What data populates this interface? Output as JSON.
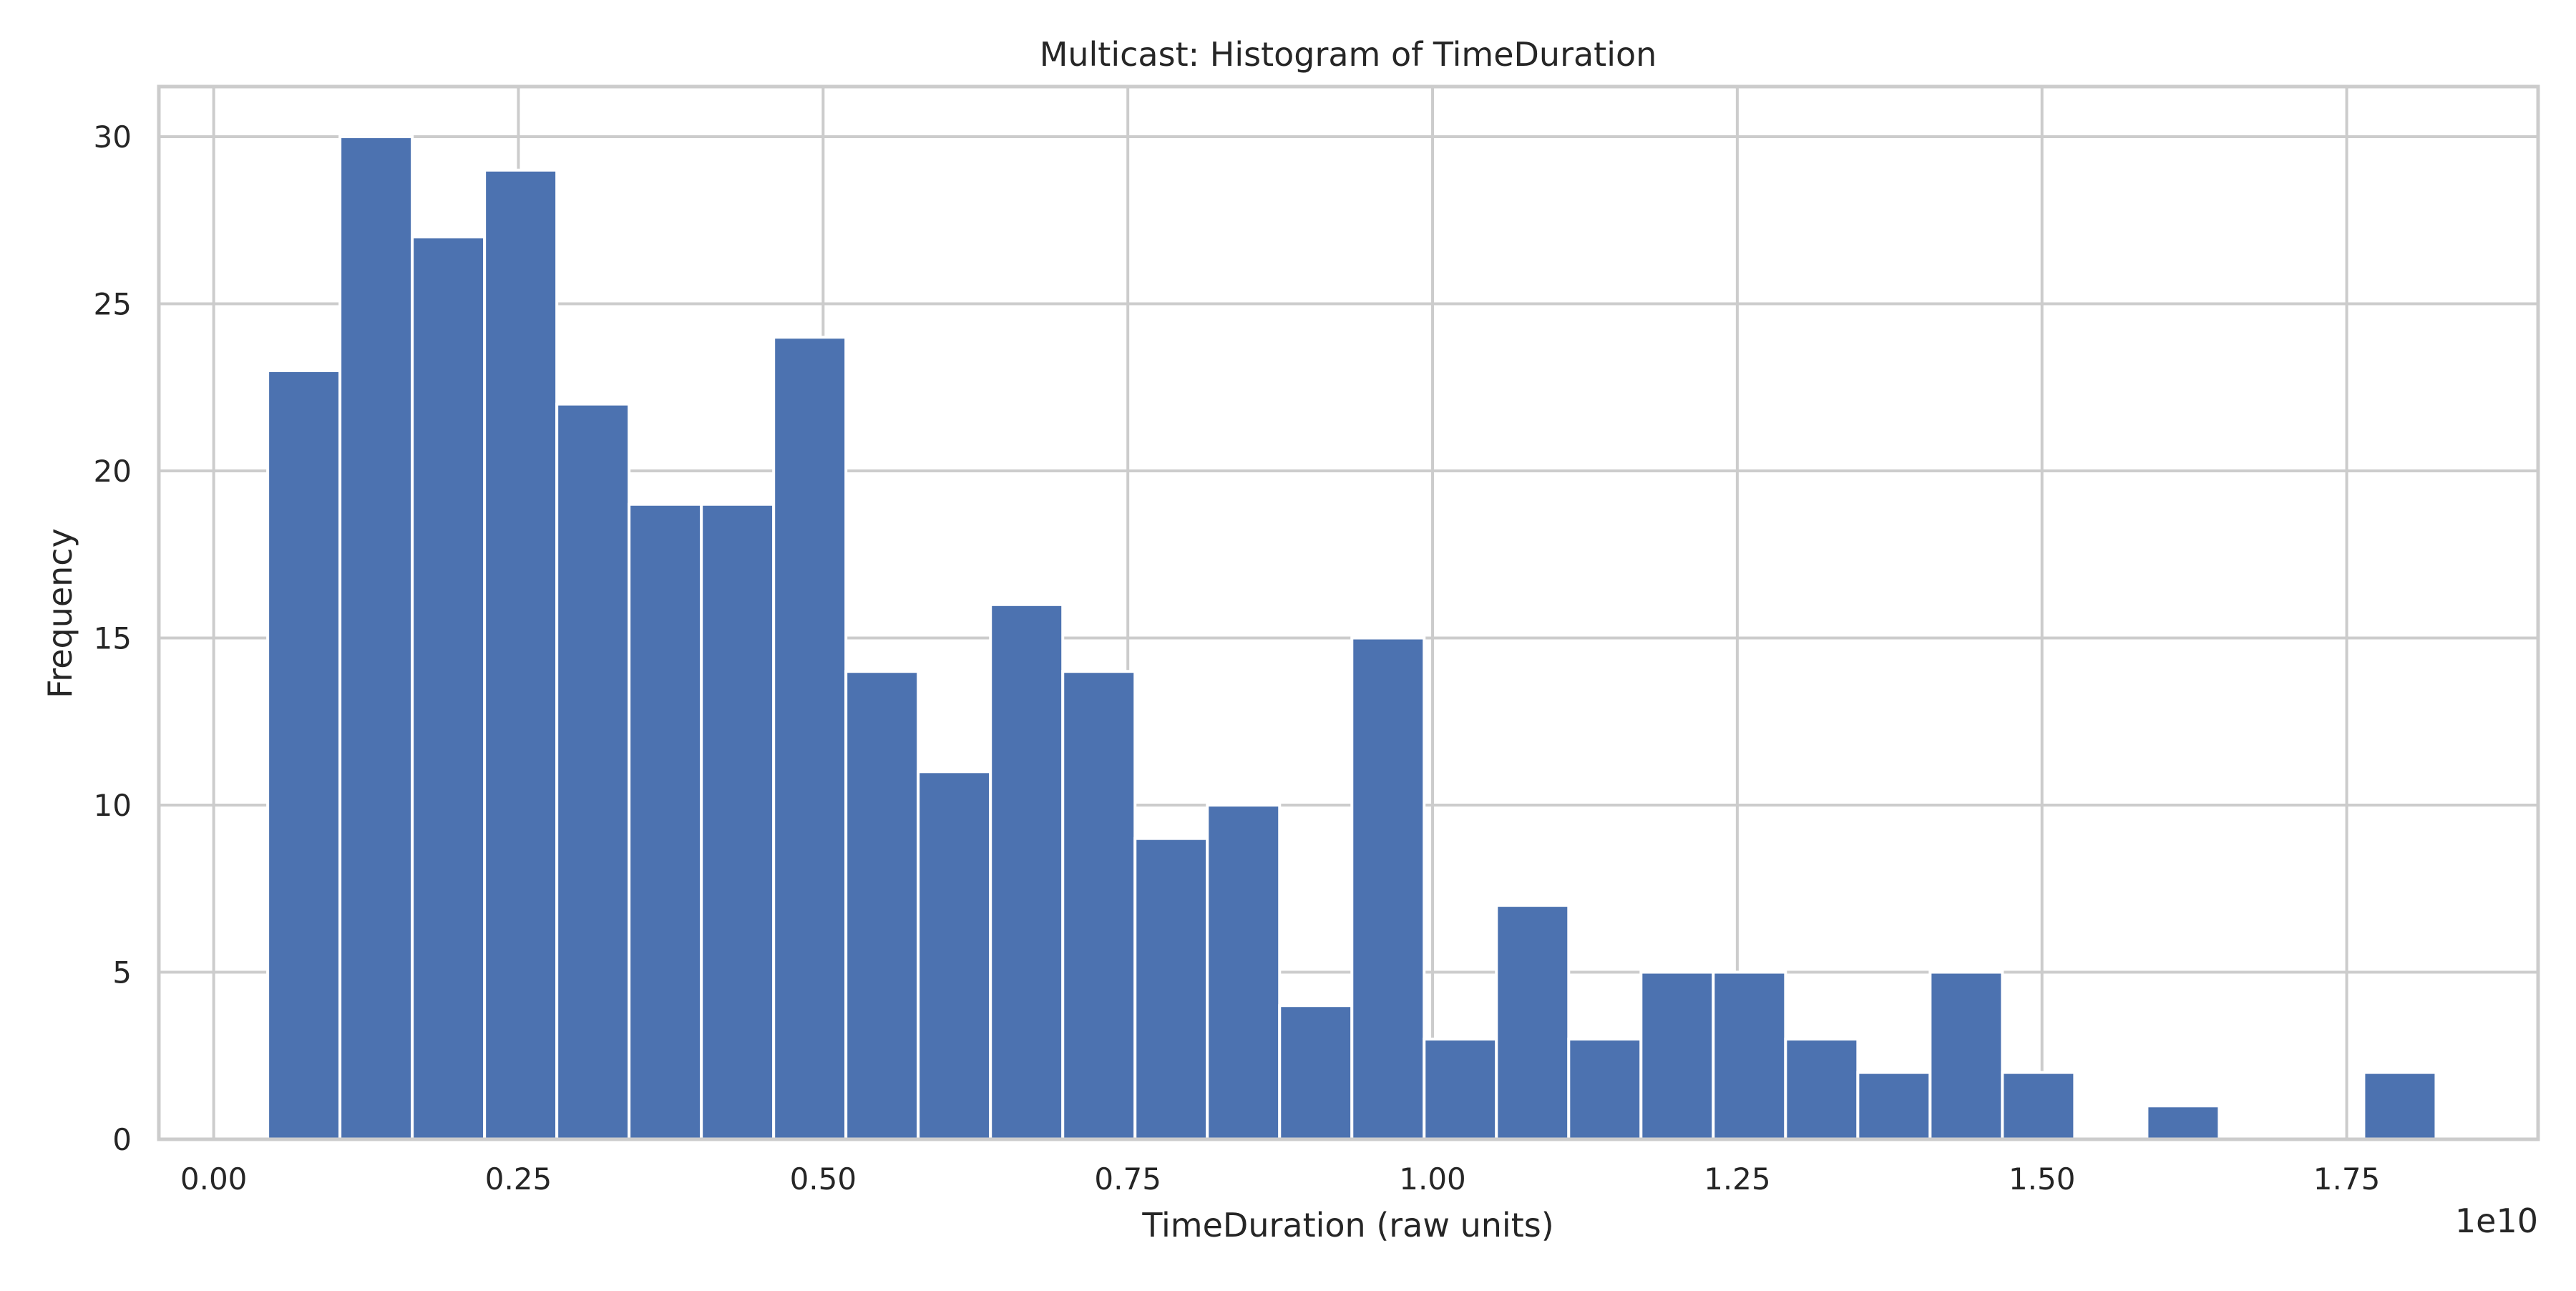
{
  "chart_data": {
    "type": "bar",
    "title": "Multicast: Histogram of TimeDuration",
    "xlabel": "TimeDuration (raw units)",
    "ylabel": "Frequency",
    "x_offset_label": "1e10",
    "x_scale": 10000000000.0,
    "xlim": [
      -0.045,
      1.907
    ],
    "ylim": [
      0,
      31.5
    ],
    "x_ticks": [
      {
        "value": 0.0,
        "label": "0.00"
      },
      {
        "value": 0.25,
        "label": "0.25"
      },
      {
        "value": 0.5,
        "label": "0.50"
      },
      {
        "value": 0.75,
        "label": "0.75"
      },
      {
        "value": 1.0,
        "label": "1.00"
      },
      {
        "value": 1.25,
        "label": "1.25"
      },
      {
        "value": 1.5,
        "label": "1.50"
      },
      {
        "value": 1.75,
        "label": "1.75"
      }
    ],
    "y_ticks": [
      {
        "value": 0,
        "label": "0"
      },
      {
        "value": 5,
        "label": "5"
      },
      {
        "value": 10,
        "label": "10"
      },
      {
        "value": 15,
        "label": "15"
      },
      {
        "value": 20,
        "label": "20"
      },
      {
        "value": 25,
        "label": "25"
      },
      {
        "value": 30,
        "label": "30"
      }
    ],
    "grid": true,
    "bar_color": "#4c72b0",
    "grid_color": "#cccccc",
    "bin_start": 0.0443,
    "bin_width": 0.0593,
    "values": [
      23,
      30,
      27,
      29,
      22,
      19,
      19,
      24,
      14,
      11,
      16,
      14,
      9,
      10,
      4,
      15,
      3,
      7,
      3,
      5,
      5,
      3,
      2,
      5,
      2,
      0,
      1,
      0,
      0,
      2
    ]
  }
}
